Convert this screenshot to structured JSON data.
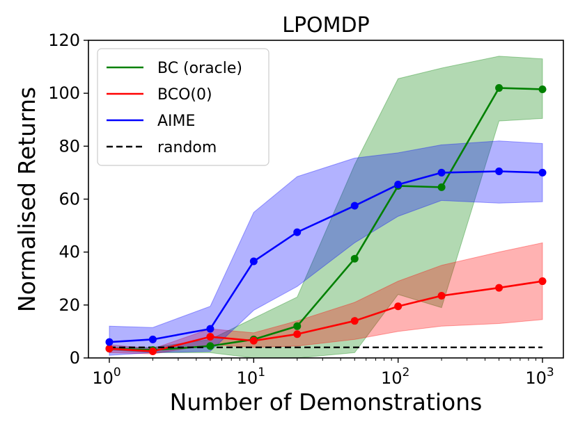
{
  "chart_data": {
    "type": "line",
    "title": "LPOMDP",
    "xlabel": "Number of Demonstrations",
    "ylabel": "Normalised Returns",
    "xscale": "log",
    "xlim": [
      1,
      1000
    ],
    "ylim": [
      0,
      120
    ],
    "x_ticks": [
      {
        "value": 1,
        "base": "10",
        "exp": "0"
      },
      {
        "value": 10,
        "base": "10",
        "exp": "1"
      },
      {
        "value": 100,
        "base": "10",
        "exp": "2"
      },
      {
        "value": 1000,
        "base": "10",
        "exp": "3"
      }
    ],
    "y_ticks": [
      0,
      20,
      40,
      60,
      80,
      100,
      120
    ],
    "legend_position": "top-left",
    "x": [
      1,
      2,
      5,
      10,
      20,
      50,
      100,
      200,
      500,
      1000
    ],
    "series": [
      {
        "name": "BC (oracle)",
        "color": "#008000",
        "fill": "#008000",
        "values": [
          3.5,
          3,
          4.5,
          7,
          12,
          37.5,
          65,
          64.5,
          102,
          101.5
        ],
        "lower": [
          3,
          2,
          2,
          0,
          0,
          2,
          24,
          19,
          89.5,
          90.5
        ],
        "upper": [
          4,
          4,
          7,
          15,
          23,
          73,
          105.5,
          109.5,
          114,
          113
        ]
      },
      {
        "name": "BCO(0)",
        "color": "#ff0000",
        "fill": "#ff0000",
        "values": [
          3.5,
          2.5,
          8,
          6.5,
          9,
          14,
          19.5,
          23.5,
          26.5,
          29
        ],
        "lower": [
          2,
          1.5,
          5,
          4,
          4.5,
          7,
          10,
          12,
          13,
          14.5
        ],
        "upper": [
          5,
          3.5,
          11,
          9.5,
          14,
          21,
          29,
          35,
          40,
          43.5
        ]
      },
      {
        "name": "AIME",
        "color": "#0000ff",
        "fill": "#0000ff",
        "values": [
          6,
          7,
          11,
          36.5,
          47.5,
          57.5,
          65.5,
          70,
          70.5,
          70
        ],
        "lower": [
          1,
          2,
          2.5,
          18,
          27,
          43.5,
          53.5,
          59.5,
          58.5,
          59
        ],
        "upper": [
          12,
          11.5,
          19.5,
          55,
          68.5,
          75.5,
          77.5,
          80.5,
          82,
          81
        ]
      },
      {
        "name": "random",
        "color": "#000000",
        "dashed": true,
        "values": [
          4,
          4,
          4,
          4,
          4,
          4,
          4,
          4,
          4,
          4
        ]
      }
    ]
  }
}
